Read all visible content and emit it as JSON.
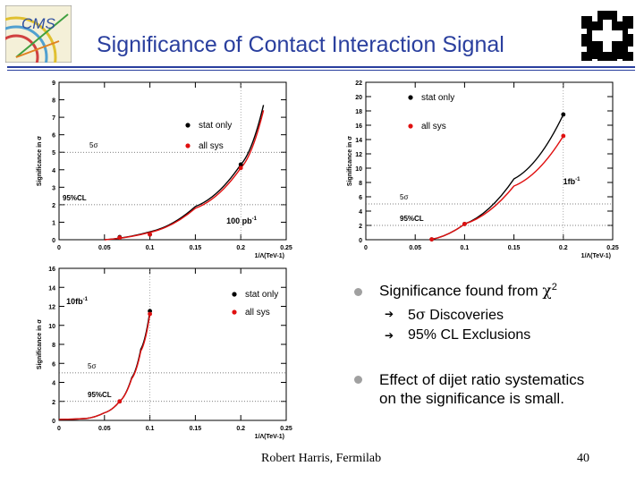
{
  "slide": {
    "title": "Significance of Contact Interaction Signal",
    "footer": "Robert Harris, Fermilab",
    "page_number": "40",
    "logo_text": "CMS"
  },
  "bullets": [
    {
      "text_prefix": "Significance found from ",
      "chi": "χ",
      "sup": "2",
      "subitems": [
        {
          "sigma_prefix": "5",
          "sigma": "σ",
          "rest": " Discoveries"
        },
        {
          "text": "95% CL Exclusions"
        }
      ]
    },
    {
      "line1": "Effect of dijet ratio systematics",
      "line2": "on the significance is small."
    }
  ],
  "chart_data": [
    {
      "type": "line",
      "ylabel": "Significance in σ",
      "xlabel": "1/Λ(TeV-1)",
      "xlim": [
        0,
        0.25
      ],
      "ylim": [
        0,
        9
      ],
      "xticks": [
        0,
        0.05,
        0.1,
        0.15,
        0.2,
        0.25
      ],
      "xtick_labels": [
        "0",
        "0.05",
        "0.1",
        "0.15",
        "0.2",
        "0.25"
      ],
      "yticks": [
        0,
        1,
        2,
        3,
        4,
        5,
        6,
        7,
        8,
        9
      ],
      "legend": [
        {
          "name": "stat only",
          "color": "#000000"
        },
        {
          "name": "all sys",
          "color": "#e01010"
        }
      ],
      "hlines": [
        {
          "y": 5,
          "label": "5σ"
        },
        {
          "y": 2,
          "label": "95%CL"
        }
      ],
      "lumi": "100 pb",
      "lumi_sup": "-1",
      "series": [
        {
          "name": "stat only",
          "color": "#000000",
          "x": [
            0.0667,
            0.1,
            0.2
          ],
          "y": [
            0.15,
            0.3,
            4.3
          ],
          "curve_x": [
            0.05,
            0.1,
            0.15,
            0.2,
            0.225
          ],
          "curve_y": [
            0.0,
            0.45,
            1.9,
            4.3,
            7.7
          ]
        },
        {
          "name": "all sys",
          "color": "#e01010",
          "x": [
            0.0667,
            0.1,
            0.2
          ],
          "y": [
            0.12,
            0.3,
            4.1
          ],
          "curve_x": [
            0.05,
            0.1,
            0.15,
            0.2,
            0.225
          ],
          "curve_y": [
            0.0,
            0.42,
            1.8,
            4.1,
            7.4
          ]
        }
      ]
    },
    {
      "type": "line",
      "ylabel": "Significance in σ",
      "xlabel": "1/Λ(TeV-1)",
      "xlim": [
        0,
        0.25
      ],
      "ylim": [
        0,
        22
      ],
      "xticks": [
        0,
        0.05,
        0.1,
        0.15,
        0.2,
        0.25
      ],
      "xtick_labels": [
        "0",
        "0.05",
        "0.1",
        "0.15",
        "0.2",
        "0.25"
      ],
      "yticks": [
        0,
        2,
        4,
        6,
        8,
        10,
        12,
        14,
        16,
        18,
        20,
        22
      ],
      "legend": [
        {
          "name": "stat only",
          "color": "#000000"
        },
        {
          "name": "all sys",
          "color": "#e01010"
        }
      ],
      "hlines": [
        {
          "y": 5,
          "label": "5σ"
        },
        {
          "y": 2,
          "label": "95%CL"
        }
      ],
      "lumi": "1fb",
      "lumi_sup": "-1",
      "series": [
        {
          "name": "stat only",
          "color": "#000000",
          "x": [
            0.0667,
            0.1,
            0.2
          ],
          "y": [
            0.05,
            2.2,
            17.5
          ],
          "curve_x": [
            0.0667,
            0.1,
            0.15,
            0.2
          ],
          "curve_y": [
            0.05,
            2.2,
            8.5,
            17.5
          ]
        },
        {
          "name": "all sys",
          "color": "#e01010",
          "x": [
            0.0667,
            0.1,
            0.2
          ],
          "y": [
            0.05,
            2.2,
            14.5
          ],
          "curve_x": [
            0.0667,
            0.1,
            0.15,
            0.2
          ],
          "curve_y": [
            0.05,
            2.2,
            7.5,
            14.5
          ]
        }
      ]
    },
    {
      "type": "line",
      "ylabel": "Significance in σ",
      "xlabel": "1/Λ(TeV-1)",
      "xlim": [
        0,
        0.25
      ],
      "ylim": [
        0,
        16
      ],
      "xticks": [
        0,
        0.05,
        0.1,
        0.15,
        0.2,
        0.25
      ],
      "xtick_labels": [
        "0",
        "0.05",
        "0.1",
        "0.15",
        "0.2",
        "0.25"
      ],
      "yticks": [
        0,
        2,
        4,
        6,
        8,
        10,
        12,
        14,
        16
      ],
      "legend": [
        {
          "name": "stat only",
          "color": "#000000"
        },
        {
          "name": "all sys",
          "color": "#e01010"
        }
      ],
      "hlines": [
        {
          "y": 5,
          "label": "5σ"
        },
        {
          "y": 2,
          "label": "95%CL"
        }
      ],
      "lumi": "10fb",
      "lumi_sup": "-1",
      "series": [
        {
          "name": "stat only",
          "color": "#000000",
          "x": [
            0.0667,
            0.1
          ],
          "y": [
            2.0,
            11.5
          ],
          "curve_x": [
            0.0,
            0.03,
            0.05,
            0.0667,
            0.08,
            0.09,
            0.1
          ],
          "curve_y": [
            0.1,
            0.2,
            0.8,
            2.0,
            4.5,
            7.5,
            11.5
          ]
        },
        {
          "name": "all sys",
          "color": "#e01010",
          "x": [
            0.0667,
            0.1
          ],
          "y": [
            2.0,
            11.2
          ],
          "curve_x": [
            0.0,
            0.03,
            0.05,
            0.0667,
            0.08,
            0.09,
            0.1
          ],
          "curve_y": [
            0.1,
            0.2,
            0.8,
            2.0,
            4.4,
            7.3,
            11.2
          ]
        }
      ]
    }
  ]
}
